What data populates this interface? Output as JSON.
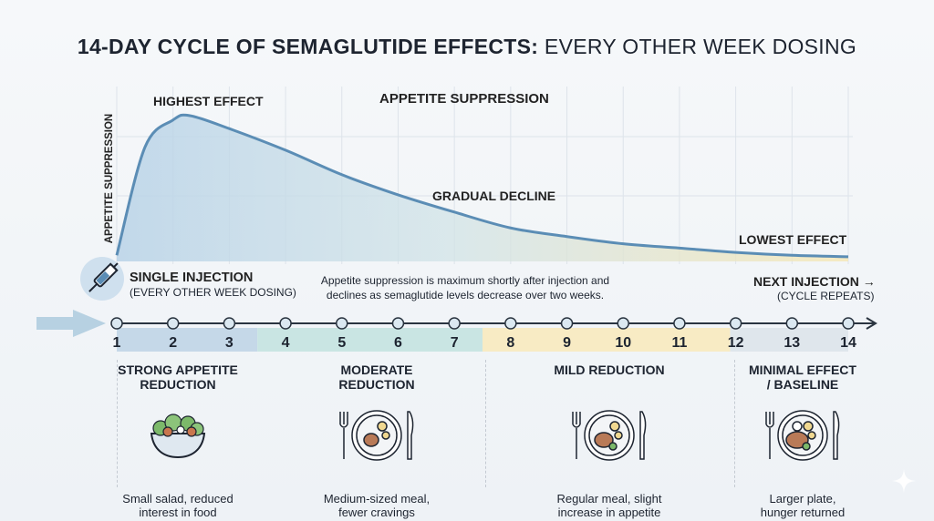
{
  "title": {
    "bold": "14-DAY CYCLE OF SEMAGLUTIDE EFFECTS:",
    "light": " EVERY OTHER WEEK DOSING"
  },
  "chart_data": {
    "type": "area",
    "title": "APPETITE SUPPRESSION",
    "ylabel": "APPETITE SUPPRESSION",
    "xlabel": "",
    "x": [
      1,
      1.5,
      2,
      2.3,
      3,
      4,
      5,
      6,
      7,
      8,
      9,
      10,
      11,
      12,
      13,
      14
    ],
    "values": [
      3,
      78,
      97,
      100,
      91,
      76,
      59,
      45,
      33,
      22,
      16,
      11,
      8,
      5,
      3,
      2
    ],
    "xlim": [
      1,
      14
    ],
    "ylim": [
      0,
      100
    ],
    "grid": true,
    "annotations": {
      "peak": "HIGHEST EFFECT",
      "mid": "GRADUAL DECLINE",
      "low": "LOWEST EFFECT"
    },
    "colors": {
      "line": "#5b8db5",
      "fill_start": "#b9d3e8",
      "fill_end": "#f6e7b4"
    }
  },
  "injection": {
    "title": "SINGLE INJECTION",
    "sub": "(EVERY OTHER WEEK DOSING)",
    "icon": "syringe-icon"
  },
  "note": {
    "line1": "Appetite suppression is maximum shortly after injection and",
    "line2": "declines as semaglutide levels decrease over two weeks."
  },
  "next": {
    "title": "NEXT INJECTION →",
    "sub": "(CYCLE REPEATS)"
  },
  "days": [
    "1",
    "2",
    "3",
    "4",
    "5",
    "6",
    "7",
    "8",
    "9",
    "10",
    "11",
    "12",
    "13",
    "14"
  ],
  "phases": [
    {
      "title1": "STRONG APPETITE",
      "title2": "REDUCTION",
      "desc1": "Small salad, reduced",
      "desc2": "interest in food",
      "icon": "salad-bowl-icon",
      "color": "#c5d8e8"
    },
    {
      "title1": "MODERATE",
      "title2": "REDUCTION",
      "desc1": "Medium-sized meal,",
      "desc2": "fewer cravings",
      "icon": "plate-meal-icon",
      "color": "#c9e5e3"
    },
    {
      "title1": "MILD REDUCTION",
      "title2": "",
      "desc1": "Regular meal, slight",
      "desc2": "increase in appetite",
      "icon": "plate-meal-icon",
      "color": "#f8ebc4"
    },
    {
      "title1": "MINIMAL EFFECT",
      "title2": "/ BASELINE",
      "desc1": "Larger plate,",
      "desc2": "hunger returned",
      "icon": "plate-meal-icon",
      "color": "#dfe6ec"
    }
  ]
}
